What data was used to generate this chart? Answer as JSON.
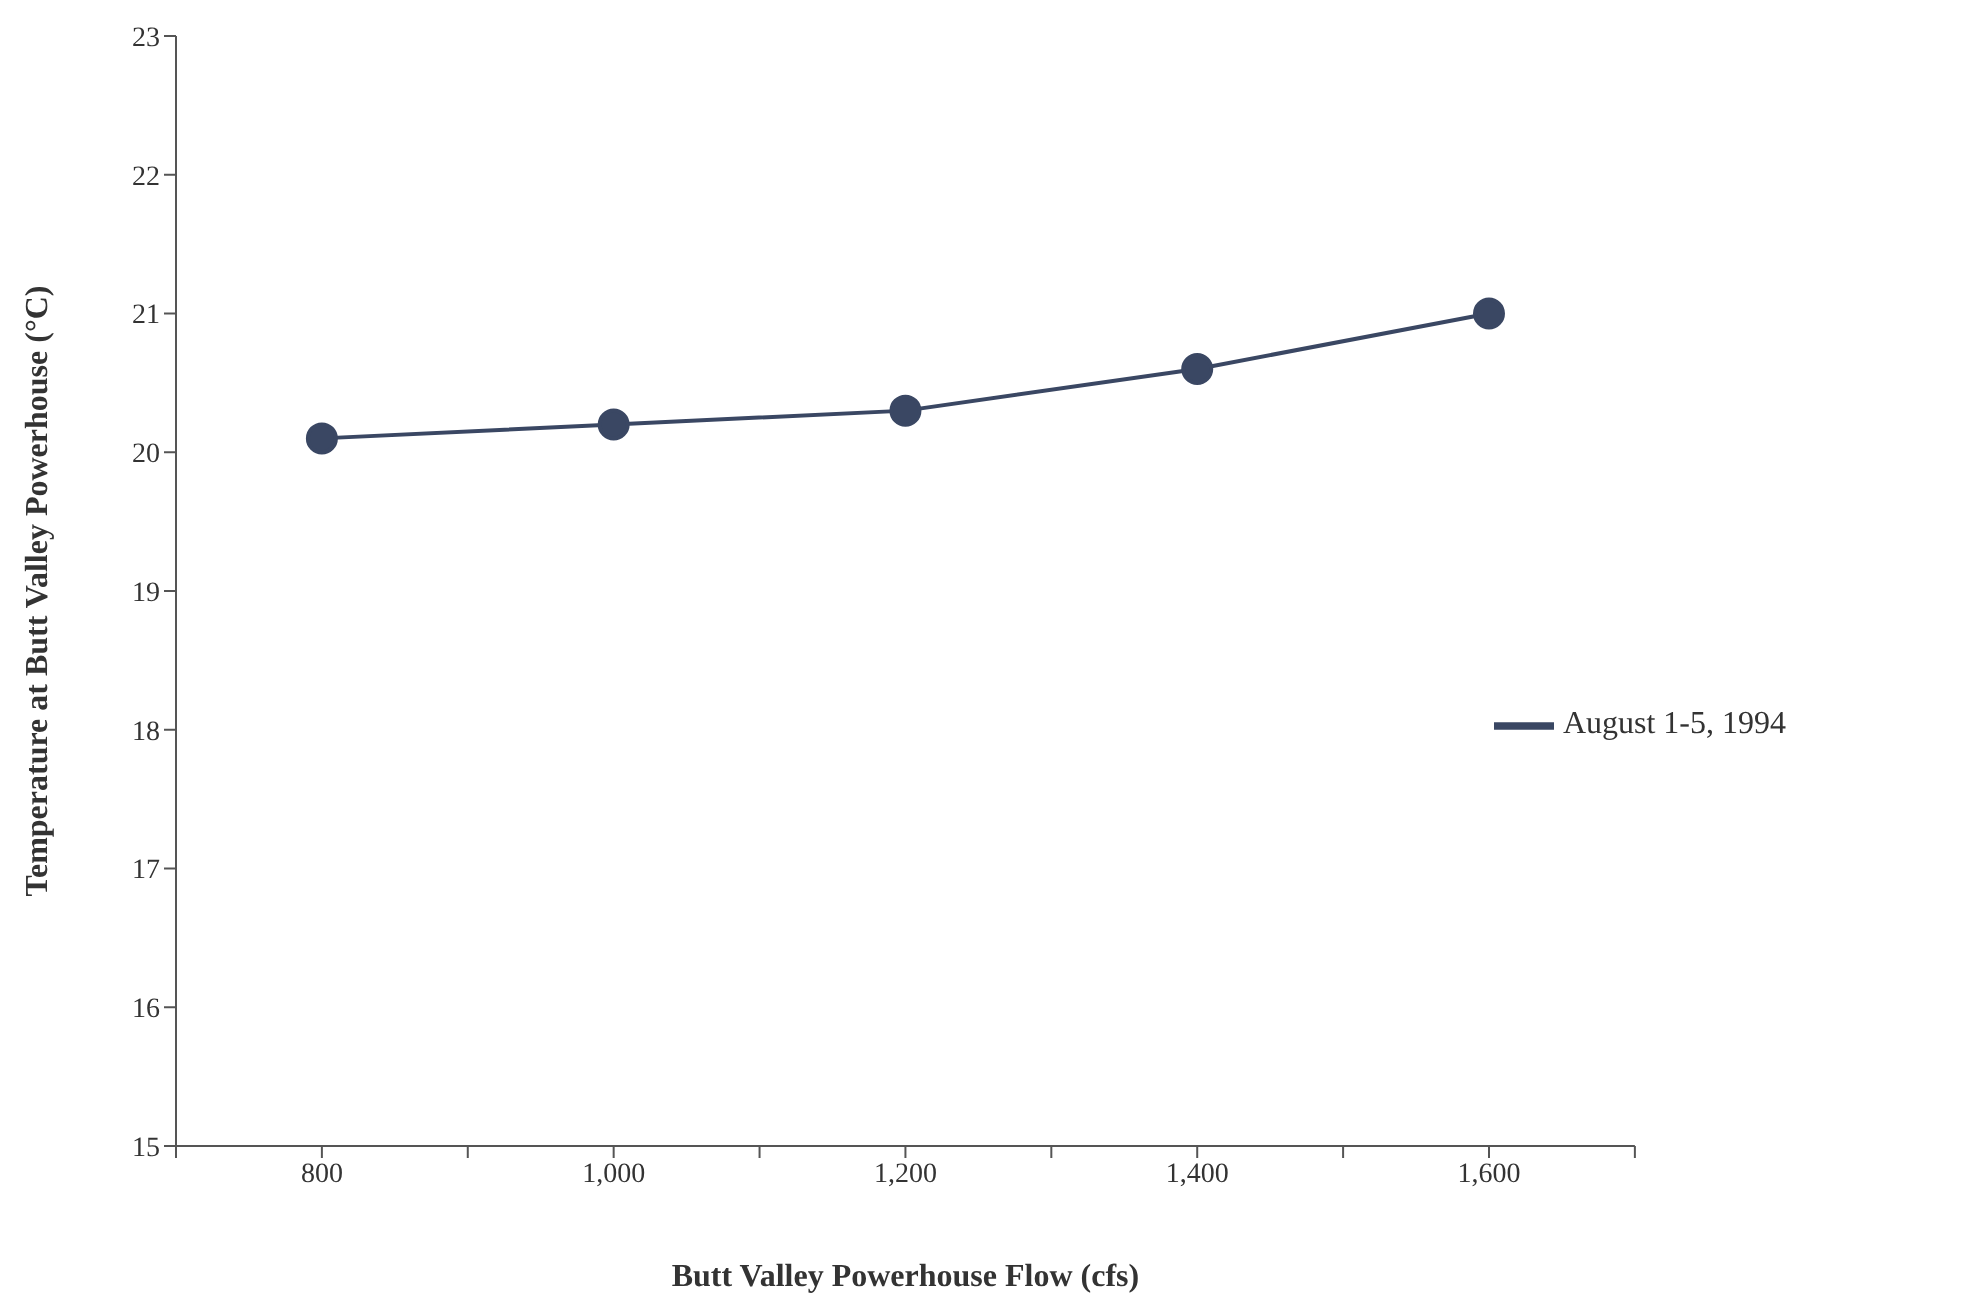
{
  "chart_data": {
    "type": "line",
    "xlabel": "Butt Valley Powerhouse Flow (cfs)",
    "ylabel": "Temperature at Butt Valley Powerhouse (°C)",
    "x": [
      800,
      1000,
      1200,
      1400,
      1600
    ],
    "series": [
      {
        "name": "August 1-5, 1994",
        "color": "#3a4763",
        "values": [
          20.1,
          20.2,
          20.3,
          20.6,
          21.0
        ]
      }
    ],
    "xlim": [
      700,
      1700
    ],
    "xticks": [
      {
        "value": 700,
        "label": null
      },
      {
        "value": 800,
        "label": "800"
      },
      {
        "value": 900,
        "label": null
      },
      {
        "value": 1000,
        "label": "1,000"
      },
      {
        "value": 1100,
        "label": null
      },
      {
        "value": 1200,
        "label": "1,200"
      },
      {
        "value": 1300,
        "label": null
      },
      {
        "value": 1400,
        "label": "1,400"
      },
      {
        "value": 1500,
        "label": null
      },
      {
        "value": 1600,
        "label": "1,600"
      },
      {
        "value": 1700,
        "label": null
      }
    ],
    "ylim": [
      15,
      23
    ],
    "yticks": [
      15,
      16,
      17,
      18,
      19,
      20,
      21,
      22,
      23
    ],
    "grid": false,
    "legend": "right",
    "marker": "circle",
    "line_style": "solid"
  }
}
